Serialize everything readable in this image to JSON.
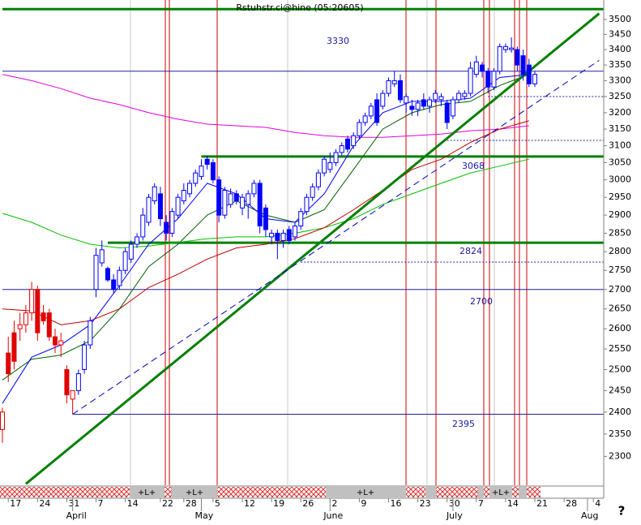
{
  "chart_data": {
    "type": "candlestick",
    "title": "Rstuhstr.ci@hine (05:20605)",
    "log_scale": true,
    "ylim": [
      2237,
      3566
    ],
    "yticks": [
      2300,
      2350,
      2400,
      2450,
      2500,
      2550,
      2600,
      2650,
      2700,
      2750,
      2800,
      2850,
      2900,
      2950,
      3000,
      3050,
      3100,
      3150,
      3200,
      3250,
      3300,
      3350,
      3400,
      3450,
      3500
    ],
    "xlim": [
      0,
      102
    ],
    "xticks": [
      {
        "value": 1,
        "label": "17"
      },
      {
        "value": 6,
        "label": "24"
      },
      {
        "value": 11,
        "label": "31"
      },
      {
        "value": 16,
        "label": "7"
      },
      {
        "value": 21,
        "label": "14"
      },
      {
        "value": 27,
        "label": "22"
      },
      {
        "value": 31,
        "label": "28"
      },
      {
        "value": 36,
        "label": "5"
      },
      {
        "value": 41,
        "label": "12"
      },
      {
        "value": 46,
        "label": "19"
      },
      {
        "value": 51,
        "label": "26"
      },
      {
        "value": 56,
        "label": "2"
      },
      {
        "value": 61,
        "label": "9"
      },
      {
        "value": 66,
        "label": "16"
      },
      {
        "value": 71,
        "label": "23"
      },
      {
        "value": 76,
        "label": "30"
      },
      {
        "value": 81,
        "label": "7"
      },
      {
        "value": 86,
        "label": "14"
      },
      {
        "value": 91,
        "label": "21"
      },
      {
        "value": 96,
        "label": "28"
      },
      {
        "value": 101,
        "label": "4"
      }
    ],
    "months": [
      {
        "label": "April",
        "start": 12
      },
      {
        "label": "May",
        "start": 34
      },
      {
        "label": "June",
        "start": 56
      },
      {
        "label": "July",
        "start": 77
      },
      {
        "label": "Aug",
        "start": 100
      }
    ],
    "open": [
      2360,
      2540,
      2590,
      2600,
      2610,
      2640,
      2700,
      2640,
      2640,
      2580,
      2560,
      2500,
      2430,
      2450,
      2500,
      2560,
      2700,
      2770,
      2755,
      2725,
      2710,
      2750,
      2780,
      2820,
      2840,
      2880,
      2940,
      2960,
      2880,
      2850,
      2900,
      2940,
      2960,
      2990,
      3010,
      3060,
      3050,
      3000,
      2900,
      2930,
      2960,
      2920,
      2930,
      2960,
      2990,
      2920,
      2840,
      2850,
      2830,
      2860,
      2840,
      2870,
      2910,
      2950,
      2980,
      3020,
      3030,
      3050,
      3080,
      3120,
      3100,
      3130,
      3170,
      3190,
      3240,
      3220,
      3260,
      3290,
      3300,
      3230,
      3220,
      3210,
      3240,
      3220,
      3240,
      3240,
      3230,
      3190,
      3240,
      3250,
      3260,
      3320,
      3350,
      3330,
      3280,
      3330,
      3400,
      3400,
      3400,
      3380,
      3350,
      3290
    ],
    "high": [
      2410,
      2580,
      2620,
      2640,
      2660,
      2720,
      2710,
      2660,
      2650,
      2600,
      2590,
      2510,
      2450,
      2500,
      2570,
      2630,
      2810,
      2830,
      2760,
      2740,
      2760,
      2810,
      2830,
      2850,
      2920,
      2960,
      2990,
      2980,
      2900,
      2920,
      2960,
      2990,
      3000,
      3030,
      3060,
      3070,
      3060,
      3010,
      2980,
      2975,
      2970,
      2960,
      2970,
      3000,
      3000,
      2930,
      2860,
      2860,
      2860,
      2870,
      2880,
      2920,
      2960,
      2990,
      3030,
      3070,
      3080,
      3090,
      3110,
      3130,
      3140,
      3180,
      3200,
      3230,
      3260,
      3270,
      3310,
      3330,
      3320,
      3260,
      3240,
      3240,
      3260,
      3250,
      3270,
      3260,
      3240,
      3250,
      3270,
      3270,
      3360,
      3380,
      3360,
      3340,
      3340,
      3420,
      3420,
      3440,
      3410,
      3400,
      3370,
      3330
    ],
    "low": [
      2330,
      2470,
      2500,
      2570,
      2590,
      2620,
      2570,
      2610,
      2570,
      2540,
      2530,
      2420,
      2395,
      2440,
      2490,
      2550,
      2680,
      2760,
      2720,
      2690,
      2700,
      2740,
      2770,
      2810,
      2830,
      2870,
      2930,
      2870,
      2830,
      2840,
      2890,
      2930,
      2950,
      2980,
      3000,
      3030,
      2990,
      2880,
      2890,
      2920,
      2930,
      2900,
      2890,
      2950,
      2850,
      2840,
      2820,
      2780,
      2810,
      2820,
      2830,
      2860,
      2900,
      2940,
      2970,
      3010,
      3020,
      3040,
      3070,
      3080,
      3090,
      3120,
      3160,
      3180,
      3160,
      3210,
      3250,
      3280,
      3230,
      3200,
      3190,
      3190,
      3210,
      3200,
      3230,
      3220,
      3150,
      3180,
      3230,
      3240,
      3250,
      3310,
      3310,
      3260,
      3270,
      3320,
      3390,
      3390,
      3330,
      3300,
      3280,
      3280
    ],
    "close": [
      2400,
      2490,
      2520,
      2610,
      2640,
      2700,
      2590,
      2620,
      2580,
      2560,
      2570,
      2440,
      2450,
      2490,
      2560,
      2620,
      2790,
      2805,
      2725,
      2700,
      2750,
      2800,
      2820,
      2840,
      2900,
      2950,
      2980,
      2890,
      2850,
      2910,
      2950,
      2970,
      2990,
      3020,
      3040,
      3045,
      3000,
      2900,
      2970,
      2960,
      2940,
      2950,
      2960,
      2990,
      2870,
      2860,
      2850,
      2830,
      2850,
      2830,
      2870,
      2910,
      2950,
      2980,
      3020,
      3060,
      3050,
      3080,
      3100,
      3090,
      3130,
      3170,
      3190,
      3220,
      3170,
      3260,
      3300,
      3300,
      3240,
      3250,
      3210,
      3230,
      3220,
      3240,
      3260,
      3250,
      3170,
      3240,
      3260,
      3260,
      3340,
      3360,
      3330,
      3280,
      3330,
      3410,
      3410,
      3405,
      3350,
      3320,
      3290,
      3320
    ],
    "colors": [
      "#e00000",
      "#e00000",
      "#e00000",
      "#e00000",
      "#e00000",
      "#e00000",
      "#e00000",
      "#e00000",
      "#e00000",
      "#e00000",
      "#e00000",
      "#e00000",
      "#e00000",
      "#0000ff",
      "#0000ff",
      "#0000ff",
      "#0000ff",
      "#0000ff",
      "#0000ff",
      "#0000ff",
      "#0000ff",
      "#0000ff",
      "#0000ff",
      "#0000ff",
      "#0000ff",
      "#0000ff",
      "#0000ff",
      "#0000ff",
      "#0000ff",
      "#0000ff",
      "#0000ff",
      "#0000ff",
      "#0000ff",
      "#0000ff",
      "#0000ff",
      "#0000ff",
      "#0000ff",
      "#0000ff",
      "#0000ff",
      "#0000ff",
      "#0000ff",
      "#0000ff",
      "#0000ff",
      "#0000ff",
      "#0000ff",
      "#0000ff",
      "#0000ff",
      "#0000ff",
      "#0000ff",
      "#0000ff",
      "#0000ff",
      "#0000ff",
      "#0000ff",
      "#0000ff",
      "#0000ff",
      "#0000ff",
      "#0000ff",
      "#0000ff",
      "#0000ff",
      "#0000ff",
      "#0000ff",
      "#0000ff",
      "#0000ff",
      "#0000ff",
      "#0000ff",
      "#0000ff",
      "#0000ff",
      "#0000ff",
      "#0000ff",
      "#0000ff",
      "#0000ff",
      "#0000ff",
      "#0000ff",
      "#0000ff",
      "#0000ff",
      "#0000ff",
      "#0000ff",
      "#0000ff",
      "#0000ff",
      "#0000ff",
      "#0000ff",
      "#0000ff",
      "#0000ff",
      "#0000ff",
      "#0000ff",
      "#0000ff",
      "#0000ff",
      "#0000ff",
      "#0000ff",
      "#0000ff",
      "#0000ff",
      "#0000ff"
    ],
    "series": [
      {
        "color": "#e000e0",
        "x": [
          0,
          5,
          10,
          15,
          20,
          25,
          30,
          35,
          40,
          45,
          50,
          55,
          60,
          65,
          70,
          75,
          80,
          85,
          90
        ],
        "values": [
          3320,
          3300,
          3275,
          3245,
          3225,
          3200,
          3180,
          3165,
          3160,
          3155,
          3140,
          3130,
          3125,
          3125,
          3130,
          3135,
          3145,
          3150,
          3160
        ]
      },
      {
        "color": "#00c000",
        "x": [
          0,
          5,
          10,
          15,
          20,
          25,
          30,
          35,
          40,
          45,
          50,
          55,
          60,
          65,
          70,
          75,
          80,
          85,
          90
        ],
        "values": [
          2905,
          2880,
          2845,
          2820,
          2810,
          2815,
          2825,
          2835,
          2840,
          2840,
          2850,
          2865,
          2890,
          2930,
          2960,
          2990,
          3020,
          3040,
          3060
        ]
      },
      {
        "color": "#c00000",
        "x": [
          0,
          5,
          10,
          15,
          20,
          25,
          30,
          35,
          40,
          45,
          50,
          55,
          60,
          65,
          70,
          75,
          80,
          85,
          90
        ],
        "values": [
          2650,
          2645,
          2610,
          2620,
          2650,
          2705,
          2740,
          2780,
          2810,
          2820,
          2835,
          2865,
          2915,
          2970,
          3030,
          3060,
          3110,
          3150,
          3175
        ]
      },
      {
        "color": "#006000",
        "x": [
          0,
          5,
          10,
          15,
          20,
          25,
          30,
          35,
          40,
          45,
          50,
          55,
          60,
          65,
          70,
          75,
          80,
          85,
          90
        ],
        "values": [
          2475,
          2525,
          2535,
          2570,
          2650,
          2760,
          2820,
          2900,
          2940,
          2900,
          2880,
          2915,
          3030,
          3150,
          3200,
          3225,
          3235,
          3285,
          3320
        ]
      },
      {
        "color": "#0000ff",
        "x": [
          0,
          5,
          10,
          15,
          20,
          25,
          30,
          35,
          40,
          45,
          50,
          55,
          60,
          65,
          70,
          75,
          80,
          85,
          90
        ],
        "values": [
          2420,
          2530,
          2560,
          2610,
          2710,
          2820,
          2890,
          2990,
          2960,
          2890,
          2880,
          2960,
          3100,
          3200,
          3235,
          3235,
          3245,
          3310,
          3320
        ]
      }
    ],
    "trendlines": [
      {
        "color": "#008000",
        "width": 3,
        "style": "solid",
        "x": [
          4,
          102
        ],
        "values": [
          2240,
          3520
        ]
      },
      {
        "color": "#0000c0",
        "width": 1,
        "style": "dashed",
        "x": [
          12,
          102
        ],
        "values": [
          2395,
          3365
        ]
      }
    ],
    "levels": [
      {
        "value": 3535,
        "color": "#008000",
        "width": 3,
        "style": "solid",
        "start": 0,
        "labeled": false
      },
      {
        "value": 3330,
        "color": "#2020a0",
        "width": 1,
        "style": "solid",
        "start": 0,
        "labeled": true
      },
      {
        "value": 3250,
        "color": "#2020a0",
        "width": 1,
        "style": "dotted",
        "start": 83,
        "labeled": false
      },
      {
        "value": 3116,
        "color": "#2020a0",
        "width": 1,
        "style": "dotted",
        "start": 76,
        "labeled": false
      },
      {
        "value": 3068,
        "color": "#008000",
        "width": 3,
        "style": "solid",
        "start": 34,
        "labeled": true
      },
      {
        "value": 2824,
        "color": "#008000",
        "width": 3,
        "style": "solid",
        "start": 18,
        "labeled": true
      },
      {
        "value": 2772,
        "color": "#2020a0",
        "width": 1,
        "style": "dotted",
        "start": 51,
        "labeled": false
      },
      {
        "value": 2700,
        "color": "#2020a0",
        "width": 1,
        "style": "solid",
        "start": 0,
        "labeled": true
      },
      {
        "value": 2395,
        "color": "#2020a0",
        "width": 1,
        "style": "solid",
        "start": 12,
        "labeled": true
      }
    ],
    "phase_labels": [
      "+L+",
      "+L+",
      "+L+",
      "+L+"
    ],
    "help": "?"
  }
}
